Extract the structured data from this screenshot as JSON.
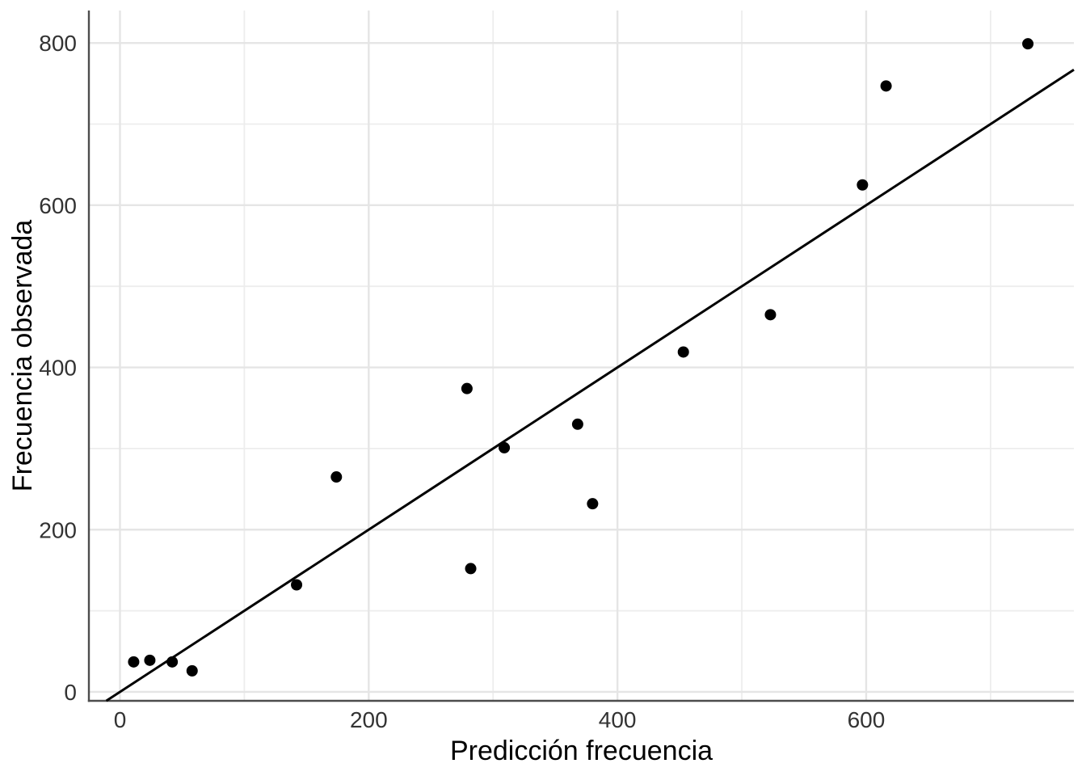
{
  "chart_data": {
    "type": "scatter",
    "title": "",
    "xlabel": "Predicción frecuencia",
    "ylabel": "Frecuencia observada",
    "xlim": [
      -25,
      767
    ],
    "ylim": [
      -11,
      840
    ],
    "x_major_ticks": [
      0,
      200,
      400,
      600
    ],
    "y_major_ticks": [
      0,
      200,
      400,
      600,
      800
    ],
    "x_minor_ticks": [
      100,
      300,
      500,
      700
    ],
    "y_minor_ticks": [
      100,
      300,
      500,
      700
    ],
    "grid": "on",
    "legend": "none",
    "points": [
      {
        "x": 11,
        "y": 37
      },
      {
        "x": 24,
        "y": 39
      },
      {
        "x": 42,
        "y": 37
      },
      {
        "x": 58,
        "y": 26
      },
      {
        "x": 142,
        "y": 132
      },
      {
        "x": 174,
        "y": 265
      },
      {
        "x": 279,
        "y": 374
      },
      {
        "x": 282,
        "y": 152
      },
      {
        "x": 309,
        "y": 301
      },
      {
        "x": 368,
        "y": 330
      },
      {
        "x": 380,
        "y": 232
      },
      {
        "x": 453,
        "y": 419
      },
      {
        "x": 523,
        "y": 465
      },
      {
        "x": 597,
        "y": 625
      },
      {
        "x": 616,
        "y": 747
      },
      {
        "x": 730,
        "y": 799
      }
    ],
    "reference_line": {
      "type": "identity",
      "slope": 1,
      "intercept": 0
    },
    "style": {
      "point_radius": 7,
      "point_color": "#000000",
      "line_color": "#000000",
      "line_width": 3,
      "grid_major_color": "#e5e5e5",
      "grid_minor_color": "#ededed",
      "grid_major_width": 2.4,
      "grid_minor_width": 1.8,
      "axis_line_color": "#4d4d4d",
      "axis_line_width": 2.4,
      "tick_label_color": "#333333",
      "axis_title_color": "#000000",
      "background": "#ffffff"
    }
  }
}
